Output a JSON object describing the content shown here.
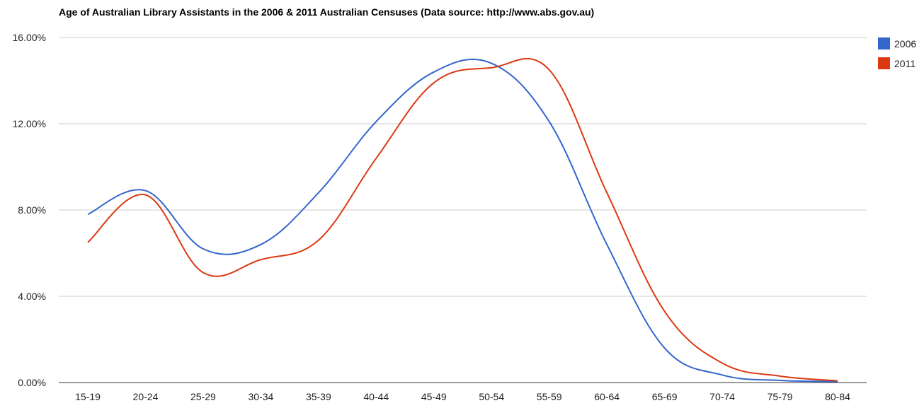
{
  "chart_data": {
    "type": "line",
    "title": "Age of Australian Library Assistants in the 2006 & 2011 Australian Censuses (Data source: http://www.abs.gov.au)",
    "categories": [
      "15-19",
      "20-24",
      "25-29",
      "30-34",
      "35-39",
      "40-44",
      "45-49",
      "50-54",
      "55-59",
      "60-64",
      "65-69",
      "70-74",
      "75-79",
      "80-84"
    ],
    "series": [
      {
        "name": "2006",
        "color": "#3366cc",
        "values": [
          7.8,
          8.9,
          6.2,
          6.4,
          8.8,
          12.1,
          14.4,
          14.8,
          12.1,
          6.4,
          1.6,
          0.35,
          0.1,
          0.05
        ]
      },
      {
        "name": "2011",
        "color": "#dc3912",
        "values": [
          6.5,
          8.7,
          5.1,
          5.7,
          6.6,
          10.4,
          13.9,
          14.6,
          14.5,
          8.8,
          3.3,
          0.9,
          0.3,
          0.08
        ]
      }
    ],
    "ylim": [
      0,
      16
    ],
    "yticks": [
      "0.00%",
      "4.00%",
      "8.00%",
      "12.00%",
      "16.00%"
    ],
    "grid": true,
    "legend": "right"
  }
}
